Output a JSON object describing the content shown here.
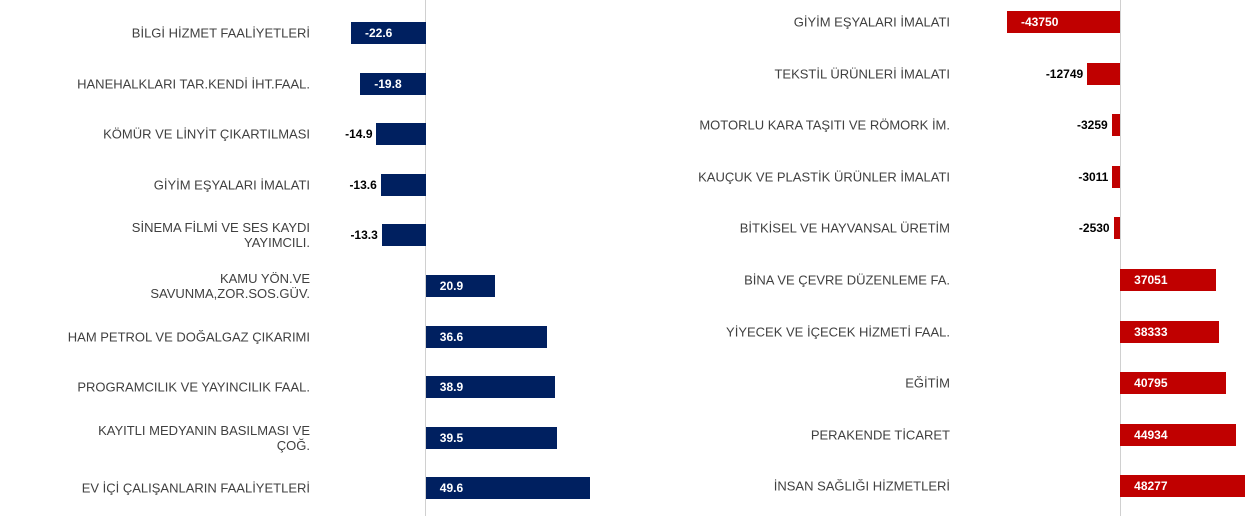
{
  "chart_data": [
    {
      "type": "bar",
      "orientation": "horizontal",
      "color": "#002060",
      "categories": [
        "BİLGİ HİZMET FAALİYETLERİ",
        "HANEHALKLARI TAR.KENDİ İHT.FAAL.",
        "KÖMÜR VE LİNYİT ÇIKARTILMASI",
        "GİYİM EŞYALARI İMALATI",
        "SİNEMA FİLMİ VE SES KAYDI\nYAYIMCILI.",
        "KAMU YÖN.VE\nSAVUNMA,ZOR.SOS.GÜV.",
        "HAM PETROL VE DOĞALGAZ ÇIKARIMI",
        "PROGRAMCILIK VE YAYINCILIK FAAL.",
        "KAYITLI MEDYANIN BASILMASI VE\nÇOĞ.",
        "EV İÇİ ÇALIŞANLARIN FAALİYETLERİ"
      ],
      "values": [
        -22.6,
        -19.8,
        -14.9,
        -13.6,
        -13.3,
        20.9,
        36.6,
        38.9,
        39.5,
        49.6
      ]
    },
    {
      "type": "bar",
      "orientation": "horizontal",
      "color": "#c00000",
      "categories": [
        "GİYİM EŞYALARI İMALATI",
        "TEKSTİL ÜRÜNLERİ İMALATI",
        "MOTORLU KARA TAŞITI VE RÖMORK İM.",
        "KAUÇUK VE PLASTİK ÜRÜNLER İMALATI",
        "BİTKİSEL VE HAYVANSAL ÜRETİM",
        "BİNA VE ÇEVRE DÜZENLEME FA.",
        "YİYECEK VE İÇECEK HİZMETİ FAAL.",
        "EĞİTİM",
        "PERAKENDE TİCARET",
        "İNSAN SAĞLIĞI HİZMETLERİ"
      ],
      "values": [
        -43750,
        -12749,
        -3259,
        -3011,
        -2530,
        37051,
        38333,
        40795,
        44934,
        48277
      ]
    }
  ]
}
